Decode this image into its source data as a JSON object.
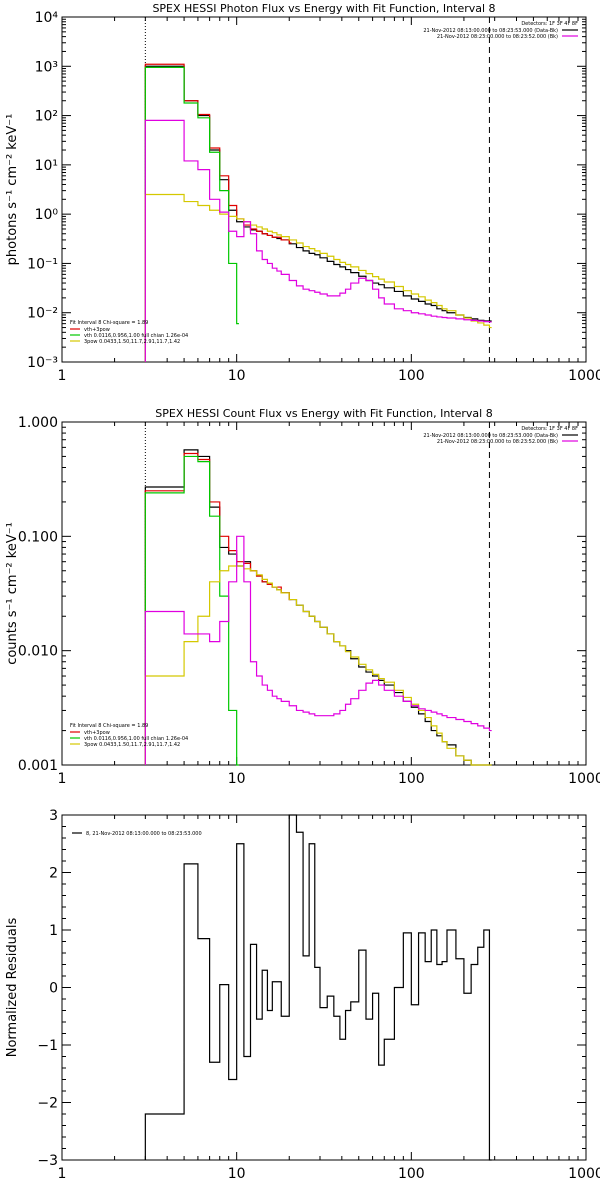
{
  "chart_data": [
    {
      "type": "line",
      "title": "SPEX HESSI Photon Flux vs Energy with Fit Function, Interval 8",
      "ylabel": "photons s⁻¹ cm⁻² keV⁻¹",
      "xscale": "log",
      "yscale": "log",
      "xlim": [
        1,
        1000
      ],
      "ylim": [
        0.001,
        10000
      ],
      "x_ticks": [
        1,
        10,
        100,
        1000
      ],
      "y_ticks": [
        0.001,
        0.01,
        0.1,
        1,
        10,
        100,
        1000,
        10000
      ],
      "x_tick_labels": [
        "1",
        "10",
        "100",
        "1000"
      ],
      "y_tick_labels": [
        "10⁻³",
        "10⁻²",
        "10⁻¹",
        "10⁰",
        "10¹",
        "10²",
        "10³",
        "10⁴"
      ],
      "vlines": [
        {
          "x": 3,
          "style": "dotted"
        },
        {
          "x": 280,
          "style": "dashed"
        }
      ],
      "legend_tr": {
        "header": "Detectors: 1F 3F 4F 8F",
        "entries": [
          {
            "label": "21-Nov-2012 08:13:00.000 to 08:23:53.000 (Data-Bk)",
            "color": "#000000"
          },
          {
            "label": "21-Nov-2012 08:23:00.000 to 08:23:52.000 (Bk)",
            "color": "#e000e0"
          }
        ]
      },
      "legend_bl": {
        "header": "Fit Interval 8   Chi-square = 1.89",
        "entries": [
          {
            "label": "vth+3pow",
            "color": "#e00000"
          },
          {
            "label": "vth 0.0116,0.956,1.00  full chian 1.26e-04",
            "color": "#00c800"
          },
          {
            "label": "3pow 0.0433,1.50,11.7,2.91,11.7,1.42",
            "color": "#d4c800"
          }
        ]
      },
      "series": [
        {
          "color": "#000000",
          "x": [
            3,
            4,
            5,
            6,
            7,
            8,
            9,
            10,
            11,
            12,
            13,
            14,
            15,
            16,
            17,
            18,
            20,
            22,
            24,
            26,
            28,
            30,
            33,
            36,
            39,
            42,
            45,
            50,
            55,
            60,
            65,
            70,
            80,
            90,
            100,
            110,
            120,
            130,
            140,
            150,
            160,
            180,
            200,
            220,
            240,
            260,
            280
          ],
          "values": [
            1000,
            1000,
            200,
            100,
            20,
            5,
            1.2,
            0.7,
            0.55,
            0.48,
            0.45,
            0.4,
            0.37,
            0.34,
            0.32,
            0.3,
            0.25,
            0.21,
            0.18,
            0.16,
            0.15,
            0.13,
            0.11,
            0.095,
            0.085,
            0.075,
            0.065,
            0.055,
            0.045,
            0.04,
            0.037,
            0.032,
            0.027,
            0.022,
            0.019,
            0.017,
            0.015,
            0.014,
            0.012,
            0.011,
            0.01,
            0.009,
            0.008,
            0.0075,
            0.007,
            0.0068,
            0.0068
          ]
        },
        {
          "color": "#e00000",
          "x": [
            3,
            4,
            5,
            6,
            7,
            8,
            9,
            10,
            11,
            12,
            13,
            14,
            15,
            16,
            18,
            20
          ],
          "values": [
            1100,
            1100,
            200,
            105,
            22,
            6,
            1.5,
            0.8,
            0.6,
            0.5,
            0.45,
            0.4,
            0.37,
            0.34,
            0.3,
            0.26
          ]
        },
        {
          "color": "#00c800",
          "x": [
            3,
            4,
            5,
            6,
            7,
            8,
            9,
            10
          ],
          "values": [
            950,
            950,
            180,
            90,
            18,
            3,
            0.1,
            0.006
          ]
        },
        {
          "color": "#d4c800",
          "x": [
            3,
            4,
            5,
            6,
            7,
            8,
            9,
            10,
            11,
            12,
            13,
            14,
            15,
            16,
            17,
            18,
            20,
            22,
            24,
            26,
            28,
            30,
            33,
            36,
            39,
            42,
            45,
            50,
            55,
            60,
            65,
            70,
            80,
            90,
            100,
            110,
            120,
            130,
            140,
            150,
            160,
            180,
            200,
            220,
            240,
            260,
            280
          ],
          "values": [
            2.5,
            2.5,
            1.8,
            1.5,
            1.2,
            1,
            0.9,
            0.8,
            0.7,
            0.6,
            0.55,
            0.5,
            0.45,
            0.42,
            0.38,
            0.35,
            0.3,
            0.26,
            0.22,
            0.2,
            0.18,
            0.16,
            0.14,
            0.12,
            0.105,
            0.095,
            0.085,
            0.072,
            0.062,
            0.054,
            0.048,
            0.042,
            0.034,
            0.028,
            0.024,
            0.021,
            0.018,
            0.016,
            0.014,
            0.012,
            0.011,
            0.009,
            0.0078,
            0.0068,
            0.0062,
            0.0056,
            0.005
          ]
        },
        {
          "color": "#e000e0",
          "x": [
            3,
            4,
            5,
            6,
            7,
            8,
            9,
            10,
            11,
            12,
            13,
            14,
            15,
            16,
            17,
            18,
            20,
            22,
            24,
            26,
            28,
            30,
            33,
            36,
            39,
            42,
            45,
            50,
            55,
            60,
            65,
            70,
            80,
            90,
            100,
            110,
            120,
            130,
            140,
            150,
            160,
            180,
            200,
            220,
            240,
            260,
            280
          ],
          "values": [
            80,
            80,
            12,
            8,
            2,
            1.1,
            0.45,
            0.35,
            0.7,
            0.4,
            0.18,
            0.12,
            0.1,
            0.08,
            0.07,
            0.06,
            0.045,
            0.035,
            0.03,
            0.028,
            0.026,
            0.024,
            0.022,
            0.022,
            0.025,
            0.03,
            0.04,
            0.05,
            0.045,
            0.03,
            0.02,
            0.015,
            0.012,
            0.011,
            0.01,
            0.0095,
            0.009,
            0.0085,
            0.0082,
            0.008,
            0.0078,
            0.0075,
            0.0072,
            0.007,
            0.0068,
            0.0066,
            0.0065
          ]
        }
      ]
    },
    {
      "type": "line",
      "title": "SPEX HESSI Count Flux vs Energy with Fit Function, Interval 8",
      "ylabel": "counts s⁻¹ cm⁻² keV⁻¹",
      "xscale": "log",
      "yscale": "log",
      "xlim": [
        1,
        1000
      ],
      "ylim": [
        0.001,
        1
      ],
      "x_ticks": [
        1,
        10,
        100,
        1000
      ],
      "y_ticks": [
        0.001,
        0.01,
        0.1,
        1
      ],
      "x_tick_labels": [
        "1",
        "10",
        "100",
        "1000"
      ],
      "y_tick_labels": [
        "0.001",
        "0.010",
        "0.100",
        "1.000"
      ],
      "vlines": [
        {
          "x": 3,
          "style": "dotted"
        },
        {
          "x": 280,
          "style": "dashed"
        }
      ],
      "legend_tr": {
        "header": "Detectors: 1F 3F 4F 8F",
        "entries": [
          {
            "label": "21-Nov-2012 08:13:00.000 to 08:23:53.000 (Data-Bk)",
            "color": "#000000"
          },
          {
            "label": "21-Nov-2012 08:23:00.000 to 08:23:52.000 (Bk)",
            "color": "#e000e0"
          }
        ]
      },
      "legend_bl": {
        "header": "Fit Interval 8   Chi-square = 1.89",
        "entries": [
          {
            "label": "vth+3pow",
            "color": "#e00000"
          },
          {
            "label": "vth 0.0116,0.956,1.00  full chian 1.26e-04",
            "color": "#00c800"
          },
          {
            "label": "3pow 0.0433,1.50,11.7,2.91,11.7,1.42",
            "color": "#d4c800"
          }
        ]
      },
      "series": [
        {
          "color": "#000000",
          "x": [
            3,
            4,
            5,
            6,
            7,
            8,
            9,
            10,
            11,
            12,
            13,
            14,
            15,
            16,
            17,
            18,
            20,
            22,
            24,
            26,
            28,
            30,
            33,
            36,
            39,
            42,
            45,
            50,
            55,
            60,
            65,
            70,
            80,
            90,
            100,
            110,
            120,
            130,
            140,
            150,
            160,
            180,
            200,
            220,
            240,
            260,
            280
          ],
          "values": [
            0.27,
            0.27,
            0.57,
            0.5,
            0.18,
            0.08,
            0.07,
            0.055,
            0.06,
            0.05,
            0.045,
            0.04,
            0.038,
            0.036,
            0.034,
            0.032,
            0.028,
            0.025,
            0.022,
            0.02,
            0.018,
            0.016,
            0.014,
            0.012,
            0.011,
            0.01,
            0.0085,
            0.0072,
            0.0065,
            0.006,
            0.0055,
            0.005,
            0.0043,
            0.0036,
            0.0032,
            0.0028,
            0.0024,
            0.002,
            0.0018,
            0.0016,
            0.0015,
            0.0012,
            0.0011,
            0.001,
            0.001,
            0.001,
            0.001
          ]
        },
        {
          "color": "#e00000",
          "x": [
            3,
            4,
            5,
            6,
            7,
            8,
            9,
            10,
            11,
            12,
            13,
            14,
            15,
            16,
            18,
            20
          ],
          "values": [
            0.25,
            0.25,
            0.53,
            0.47,
            0.2,
            0.1,
            0.075,
            0.06,
            0.058,
            0.05,
            0.045,
            0.04,
            0.038,
            0.036,
            0.032,
            0.028
          ]
        },
        {
          "color": "#00c800",
          "x": [
            3,
            4,
            5,
            6,
            7,
            8,
            9,
            10
          ],
          "values": [
            0.24,
            0.24,
            0.5,
            0.45,
            0.15,
            0.03,
            0.003,
            0.001
          ]
        },
        {
          "color": "#d4c800",
          "x": [
            3,
            4,
            5,
            6,
            7,
            8,
            9,
            10,
            11,
            12,
            13,
            14,
            15,
            16,
            17,
            18,
            20,
            22,
            24,
            26,
            28,
            30,
            33,
            36,
            39,
            42,
            45,
            50,
            55,
            60,
            65,
            70,
            80,
            90,
            100,
            110,
            120,
            130,
            140,
            150,
            160,
            180,
            200,
            220,
            240,
            260,
            280
          ],
          "values": [
            0.006,
            0.006,
            0.012,
            0.02,
            0.04,
            0.05,
            0.055,
            0.055,
            0.052,
            0.05,
            0.046,
            0.042,
            0.039,
            0.036,
            0.034,
            0.032,
            0.028,
            0.025,
            0.022,
            0.02,
            0.018,
            0.016,
            0.014,
            0.012,
            0.011,
            0.0098,
            0.0088,
            0.0076,
            0.0068,
            0.0062,
            0.0057,
            0.0053,
            0.0045,
            0.0039,
            0.0034,
            0.003,
            0.0026,
            0.0022,
            0.0019,
            0.0016,
            0.0014,
            0.0012,
            0.0011,
            0.001,
            0.001,
            0.001,
            0.001
          ]
        },
        {
          "color": "#e000e0",
          "x": [
            3,
            4,
            5,
            6,
            7,
            8,
            9,
            10,
            11,
            12,
            13,
            14,
            15,
            16,
            17,
            18,
            20,
            22,
            24,
            26,
            28,
            30,
            33,
            36,
            39,
            42,
            45,
            50,
            55,
            60,
            65,
            70,
            80,
            90,
            100,
            110,
            120,
            130,
            140,
            150,
            160,
            180,
            200,
            220,
            240,
            260,
            280
          ],
          "values": [
            0.022,
            0.022,
            0.014,
            0.014,
            0.012,
            0.018,
            0.04,
            0.1,
            0.04,
            0.008,
            0.006,
            0.005,
            0.0045,
            0.004,
            0.0038,
            0.0036,
            0.0033,
            0.003,
            0.0029,
            0.0028,
            0.0027,
            0.0027,
            0.0027,
            0.0028,
            0.003,
            0.0034,
            0.0038,
            0.0045,
            0.0052,
            0.0055,
            0.005,
            0.0045,
            0.004,
            0.0036,
            0.0033,
            0.0031,
            0.003,
            0.0029,
            0.0028,
            0.0027,
            0.0026,
            0.0025,
            0.0024,
            0.0023,
            0.0022,
            0.0021,
            0.002
          ]
        }
      ]
    },
    {
      "type": "line",
      "title": "",
      "ylabel": "Normalized Residuals",
      "xscale": "log",
      "yscale": "linear",
      "xlim": [
        1,
        1000
      ],
      "ylim": [
        -3,
        3
      ],
      "x_ticks": [
        1,
        10,
        100,
        1000
      ],
      "y_ticks": [
        -3,
        -2,
        -1,
        0,
        1,
        2,
        3
      ],
      "x_tick_labels": [
        "1",
        "10",
        "100",
        "1000"
      ],
      "y_tick_labels": [
        "−3",
        "−2",
        "−1",
        "0",
        "1",
        "2",
        "3"
      ],
      "legend_tl": {
        "entries": [
          {
            "label": "8, 21-Nov-2012 08:13:00.000 to 08:23:53.000",
            "color": "#000000"
          }
        ]
      },
      "series": [
        {
          "color": "#000000",
          "x": [
            3,
            4,
            5,
            6,
            7,
            8,
            9,
            10,
            11,
            12,
            13,
            14,
            15,
            16,
            18,
            20,
            22,
            24,
            26,
            28,
            30,
            33,
            36,
            39,
            42,
            45,
            50,
            55,
            60,
            65,
            70,
            80,
            90,
            100,
            110,
            120,
            130,
            140,
            150,
            160,
            180,
            200,
            220,
            240,
            260,
            280
          ],
          "values": [
            -2.2,
            -2.2,
            2.15,
            0.85,
            -1.3,
            0.05,
            -1.6,
            2.5,
            -1.2,
            0.75,
            -0.55,
            0.3,
            -0.4,
            0.1,
            -0.5,
            3,
            2.7,
            0.55,
            2.5,
            0.35,
            -0.35,
            -0.15,
            -0.5,
            -0.9,
            -0.4,
            -0.25,
            0.65,
            -0.55,
            -0.1,
            -1.35,
            -0.9,
            0,
            0.95,
            -0.3,
            0.95,
            0.45,
            1,
            0.4,
            0.45,
            1,
            0.5,
            -0.1,
            0.4,
            0.7,
            1,
            -3
          ]
        }
      ]
    }
  ]
}
